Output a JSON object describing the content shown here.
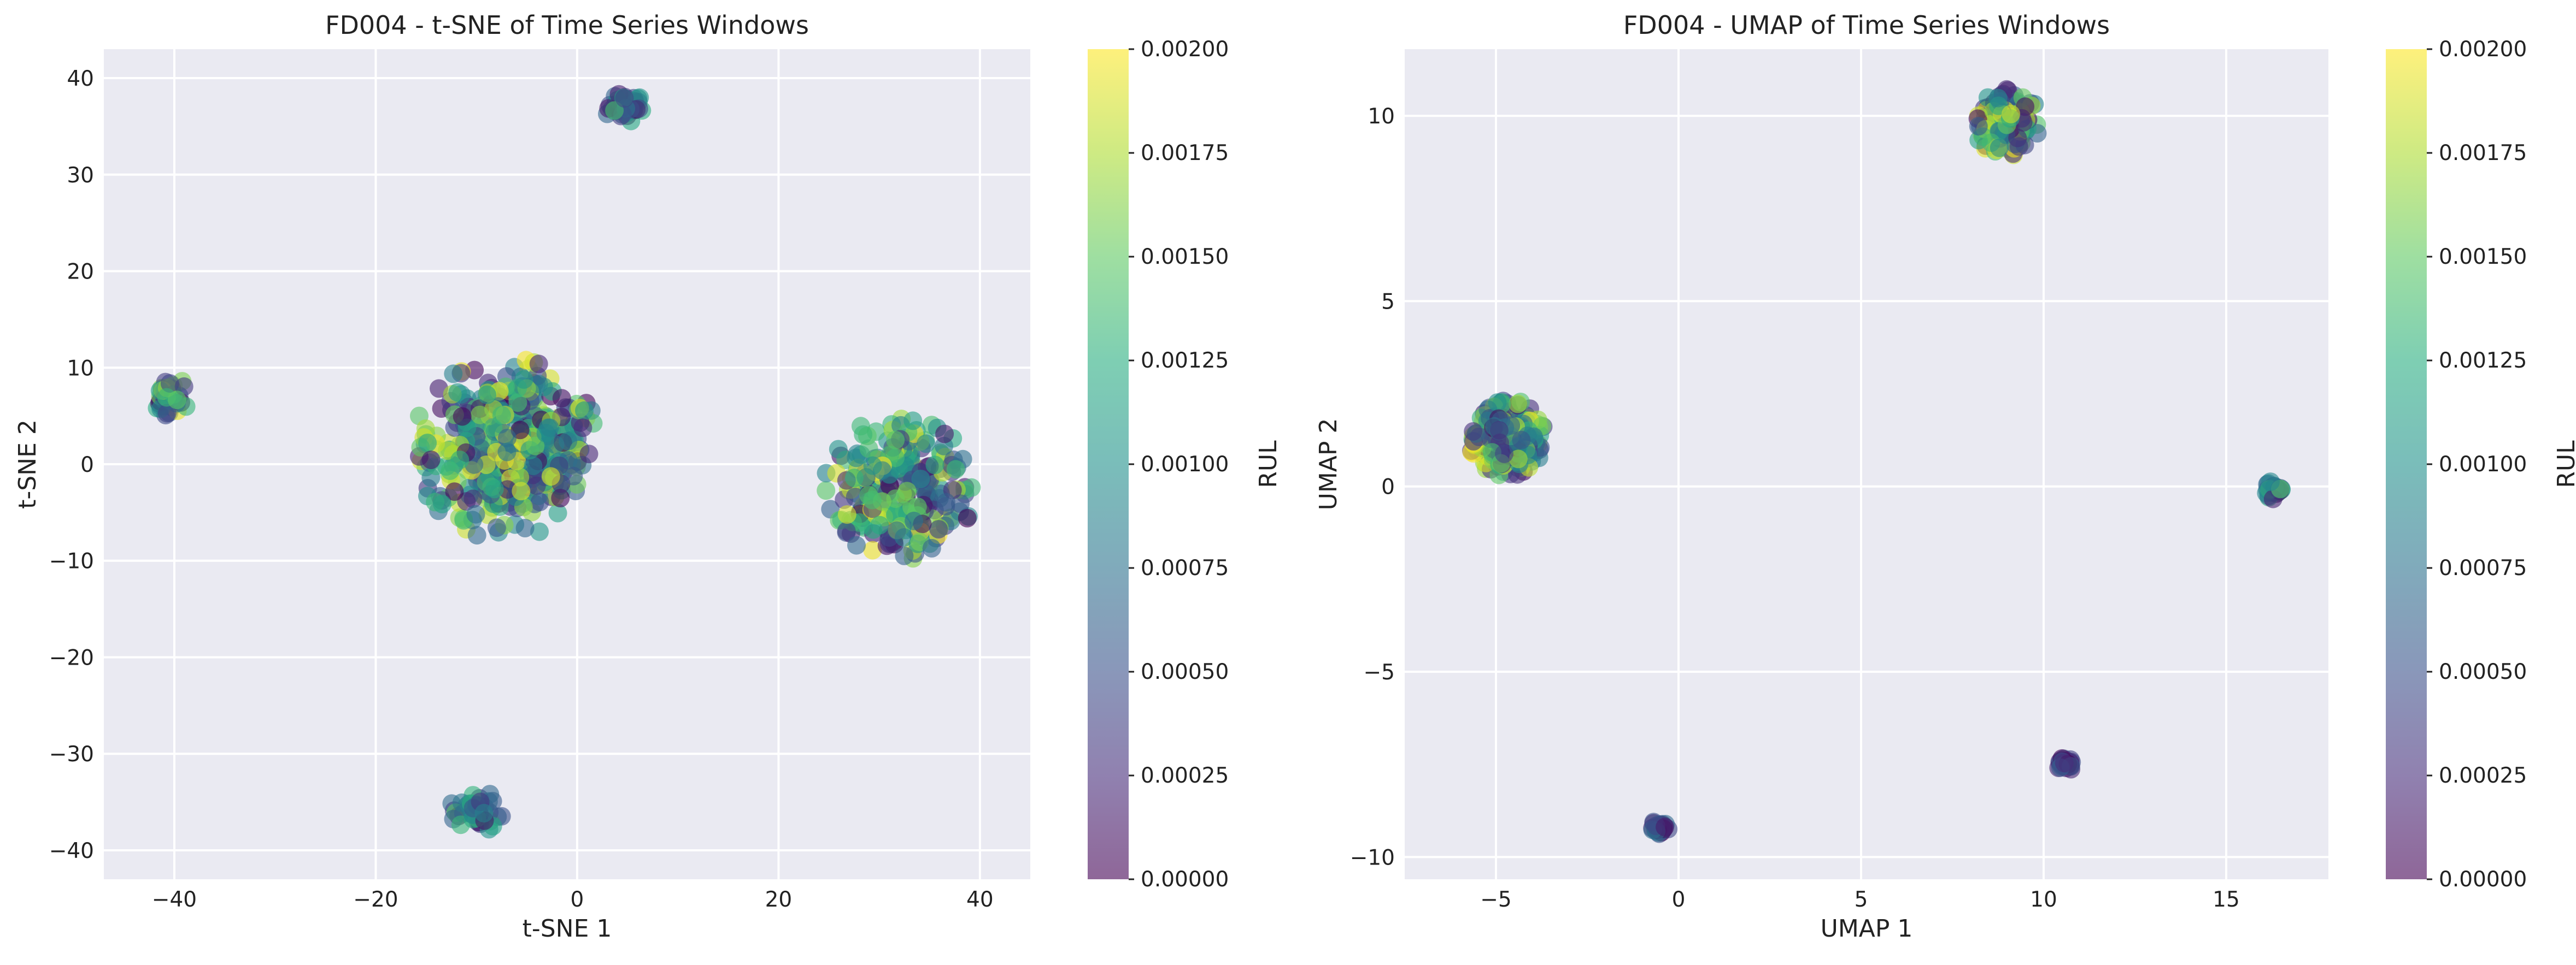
{
  "chart_data": [
    {
      "type": "scatter",
      "title": "FD004 - t-SNE of Time Series Windows",
      "xlabel": "t-SNE 1",
      "ylabel": "t-SNE 2",
      "xlim": [
        -47,
        45
      ],
      "ylim": [
        -43,
        43
      ],
      "xticks": [
        -40,
        -20,
        0,
        20,
        40
      ],
      "yticks": [
        -40,
        -30,
        -20,
        -10,
        0,
        10,
        20,
        30,
        40
      ],
      "grid": true,
      "colormap": "viridis",
      "point_alpha": 0.6,
      "colorbar": {
        "label": "RUL",
        "range": [
          0,
          0.002
        ],
        "ticks": [
          "0.00000",
          "0.00025",
          "0.00050",
          "0.00075",
          "0.00100",
          "0.00125",
          "0.00150",
          "0.00175",
          "0.00200"
        ]
      },
      "clusters": [
        {
          "center": [
            5,
            37
          ],
          "spread": [
            2.2,
            1.8
          ],
          "count": 40,
          "rul_range": [
            0.0,
            0.0015
          ]
        },
        {
          "center": [
            -40.5,
            7
          ],
          "spread": [
            2.0,
            2.2
          ],
          "count": 45,
          "rul_range": [
            0.0,
            0.002
          ]
        },
        {
          "center": [
            -7,
            1.5
          ],
          "spread": [
            9.5,
            9.5
          ],
          "count": 420,
          "rul_range": [
            0.0,
            0.002
          ]
        },
        {
          "center": [
            32,
            -2.5
          ],
          "spread": [
            7.5,
            7.5
          ],
          "count": 260,
          "rul_range": [
            0.0,
            0.002
          ]
        },
        {
          "center": [
            -10,
            -36
          ],
          "spread": [
            2.8,
            2.2
          ],
          "count": 45,
          "rul_range": [
            0.0,
            0.0015
          ]
        }
      ]
    },
    {
      "type": "scatter",
      "title": "FD004 - UMAP of Time Series Windows",
      "xlabel": "UMAP 1",
      "ylabel": "UMAP 2",
      "xlim": [
        -7.5,
        17.8
      ],
      "ylim": [
        -10.6,
        11.8
      ],
      "xticks": [
        -5,
        0,
        5,
        10,
        15
      ],
      "yticks": [
        -10,
        -5,
        0,
        5,
        10
      ],
      "grid": true,
      "colormap": "viridis",
      "point_alpha": 0.6,
      "colorbar": {
        "label": "RUL",
        "range": [
          0,
          0.002
        ],
        "ticks": [
          "0.00000",
          "0.00025",
          "0.00050",
          "0.00075",
          "0.00100",
          "0.00125",
          "0.00150",
          "0.00175",
          "0.00200"
        ]
      },
      "clusters": [
        {
          "center": [
            9.0,
            9.8
          ],
          "spread": [
            1.0,
            0.95
          ],
          "count": 150,
          "rul_range": [
            0.0,
            0.002
          ]
        },
        {
          "center": [
            -4.7,
            1.3
          ],
          "spread": [
            1.05,
            1.05
          ],
          "count": 260,
          "rul_range": [
            0.0,
            0.002
          ]
        },
        {
          "center": [
            16.3,
            -0.1
          ],
          "spread": [
            0.25,
            0.25
          ],
          "count": 30,
          "rul_range": [
            0.0,
            0.0015
          ]
        },
        {
          "center": [
            10.6,
            -7.5
          ],
          "spread": [
            0.25,
            0.2
          ],
          "count": 30,
          "rul_range": [
            0.0,
            0.0006
          ]
        },
        {
          "center": [
            -0.5,
            -9.2
          ],
          "spread": [
            0.28,
            0.22
          ],
          "count": 30,
          "rul_range": [
            0.0,
            0.0008
          ]
        }
      ]
    }
  ]
}
